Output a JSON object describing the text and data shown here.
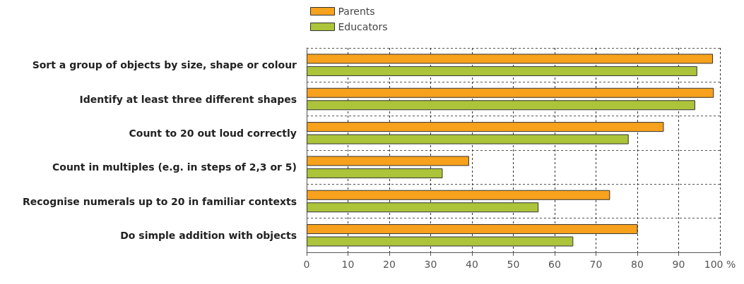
{
  "chart_data": {
    "type": "bar",
    "orientation": "horizontal",
    "categories": [
      "Sort a group of objects by size, shape or colour",
      "Identify at least three different shapes",
      "Count to 20 out loud correctly",
      "Count in multiples (e.g. in steps of 2,3 or 5)",
      "Recognise numerals up to 20 in familiar contexts",
      "Do simple addition with objects"
    ],
    "series": [
      {
        "name": "Parents",
        "color": "#f7a11c",
        "values": [
          98.3,
          98.5,
          86.4,
          39.3,
          73.4,
          80.1
        ]
      },
      {
        "name": "Educators",
        "color": "#acc43a",
        "values": [
          94.5,
          94.0,
          77.9,
          32.9,
          56.1,
          64.5
        ]
      }
    ],
    "xlim": [
      0,
      100
    ],
    "xticks": [
      0,
      10,
      20,
      30,
      40,
      50,
      60,
      70,
      80,
      90,
      {
        "value": 100,
        "label": "100 %"
      }
    ],
    "grid": true,
    "legend": "top"
  }
}
